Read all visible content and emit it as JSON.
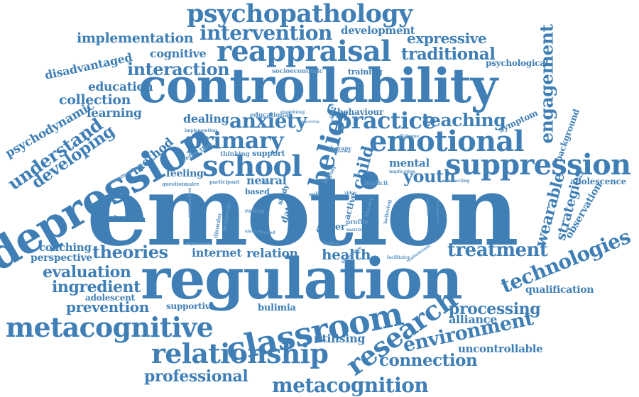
{
  "cloud": {
    "color_main": "#3f7fb6",
    "color_light": "#5e95c4",
    "words": [
      {
        "text": "emotion"
      },
      {
        "text": "regulation"
      },
      {
        "text": "controllability"
      },
      {
        "text": "depression"
      },
      {
        "text": "reappraisal"
      },
      {
        "text": "psychopathology"
      },
      {
        "text": "intervention"
      },
      {
        "text": "emotional"
      },
      {
        "text": "suppression"
      },
      {
        "text": "classroom"
      },
      {
        "text": "metacognitive"
      },
      {
        "text": "relationship"
      },
      {
        "text": "metacognition"
      },
      {
        "text": "research"
      },
      {
        "text": "technologies"
      },
      {
        "text": "environment"
      },
      {
        "text": "treatment"
      },
      {
        "text": "practice"
      },
      {
        "text": "school"
      },
      {
        "text": "primary"
      },
      {
        "text": "anxiety"
      },
      {
        "text": "belief"
      },
      {
        "text": "teaching"
      },
      {
        "text": "engagement"
      },
      {
        "text": "understand"
      },
      {
        "text": "developing"
      },
      {
        "text": "theories"
      },
      {
        "text": "evaluation"
      },
      {
        "text": "ingredient"
      },
      {
        "text": "prevention"
      },
      {
        "text": "processing"
      },
      {
        "text": "connection"
      },
      {
        "text": "professional"
      },
      {
        "text": "implementation"
      },
      {
        "text": "interaction"
      },
      {
        "text": "collection"
      },
      {
        "text": "education"
      },
      {
        "text": "learning"
      },
      {
        "text": "traditional"
      },
      {
        "text": "expressive"
      },
      {
        "text": "cognitive"
      },
      {
        "text": "development"
      },
      {
        "text": "disadvantaged"
      },
      {
        "text": "psychodynamic"
      },
      {
        "text": "psychological"
      },
      {
        "text": "wearable"
      },
      {
        "text": "strategies"
      },
      {
        "text": "observation"
      },
      {
        "text": "background"
      },
      {
        "text": "adolescence"
      },
      {
        "text": "youth"
      },
      {
        "text": "mental"
      },
      {
        "text": "child"
      },
      {
        "text": "neural"
      },
      {
        "text": "health"
      },
      {
        "text": "relation"
      },
      {
        "text": "internet"
      },
      {
        "text": "coaching"
      },
      {
        "text": "perspective"
      },
      {
        "text": "adolescent"
      },
      {
        "text": "supportive"
      },
      {
        "text": "bulimia"
      },
      {
        "text": "utilising"
      },
      {
        "text": "alliance"
      },
      {
        "text": "uncontrollable"
      },
      {
        "text": "qualification"
      },
      {
        "text": "london"
      },
      {
        "text": "method"
      },
      {
        "text": "feeling"
      },
      {
        "text": "dealing"
      },
      {
        "text": "behaviour"
      },
      {
        "text": "symptom"
      },
      {
        "text": "training"
      },
      {
        "text": "socioeconomic"
      },
      {
        "text": "support"
      },
      {
        "text": "thinking"
      },
      {
        "text": "reflection"
      },
      {
        "text": "commentary"
      },
      {
        "text": "questionnaire"
      },
      {
        "text": "participant"
      },
      {
        "text": "educational"
      },
      {
        "text": "examining"
      },
      {
        "text": "implementing"
      },
      {
        "text": "therapy"
      },
      {
        "text": "implication"
      },
      {
        "text": "connecting"
      },
      {
        "text": "implicit"
      },
      {
        "text": "active"
      },
      {
        "text": "group"
      },
      {
        "text": "peer"
      },
      {
        "text": "data"
      },
      {
        "text": "base"
      },
      {
        "text": "study"
      },
      {
        "text": "profile"
      },
      {
        "text": "video"
      },
      {
        "text": "eating"
      },
      {
        "text": "communities"
      },
      {
        "text": "academic"
      },
      {
        "text": "disorder"
      },
      {
        "text": "analyse"
      },
      {
        "text": "rise"
      },
      {
        "text": "higher"
      },
      {
        "text": "facilitator"
      },
      {
        "text": "mainstream"
      },
      {
        "text": "knowledge"
      },
      {
        "text": "expression"
      },
      {
        "text": "self"
      },
      {
        "text": "theory"
      },
      {
        "text": "efficacy"
      },
      {
        "text": "linked"
      },
      {
        "text": "finding"
      },
      {
        "text": "believing"
      },
      {
        "text": "matrix"
      },
      {
        "text": "dialogue"
      },
      {
        "text": "following"
      },
      {
        "text": "supporting"
      },
      {
        "text": "based"
      },
      {
        "text": "cognition"
      },
      {
        "text": "establishing"
      }
    ]
  }
}
